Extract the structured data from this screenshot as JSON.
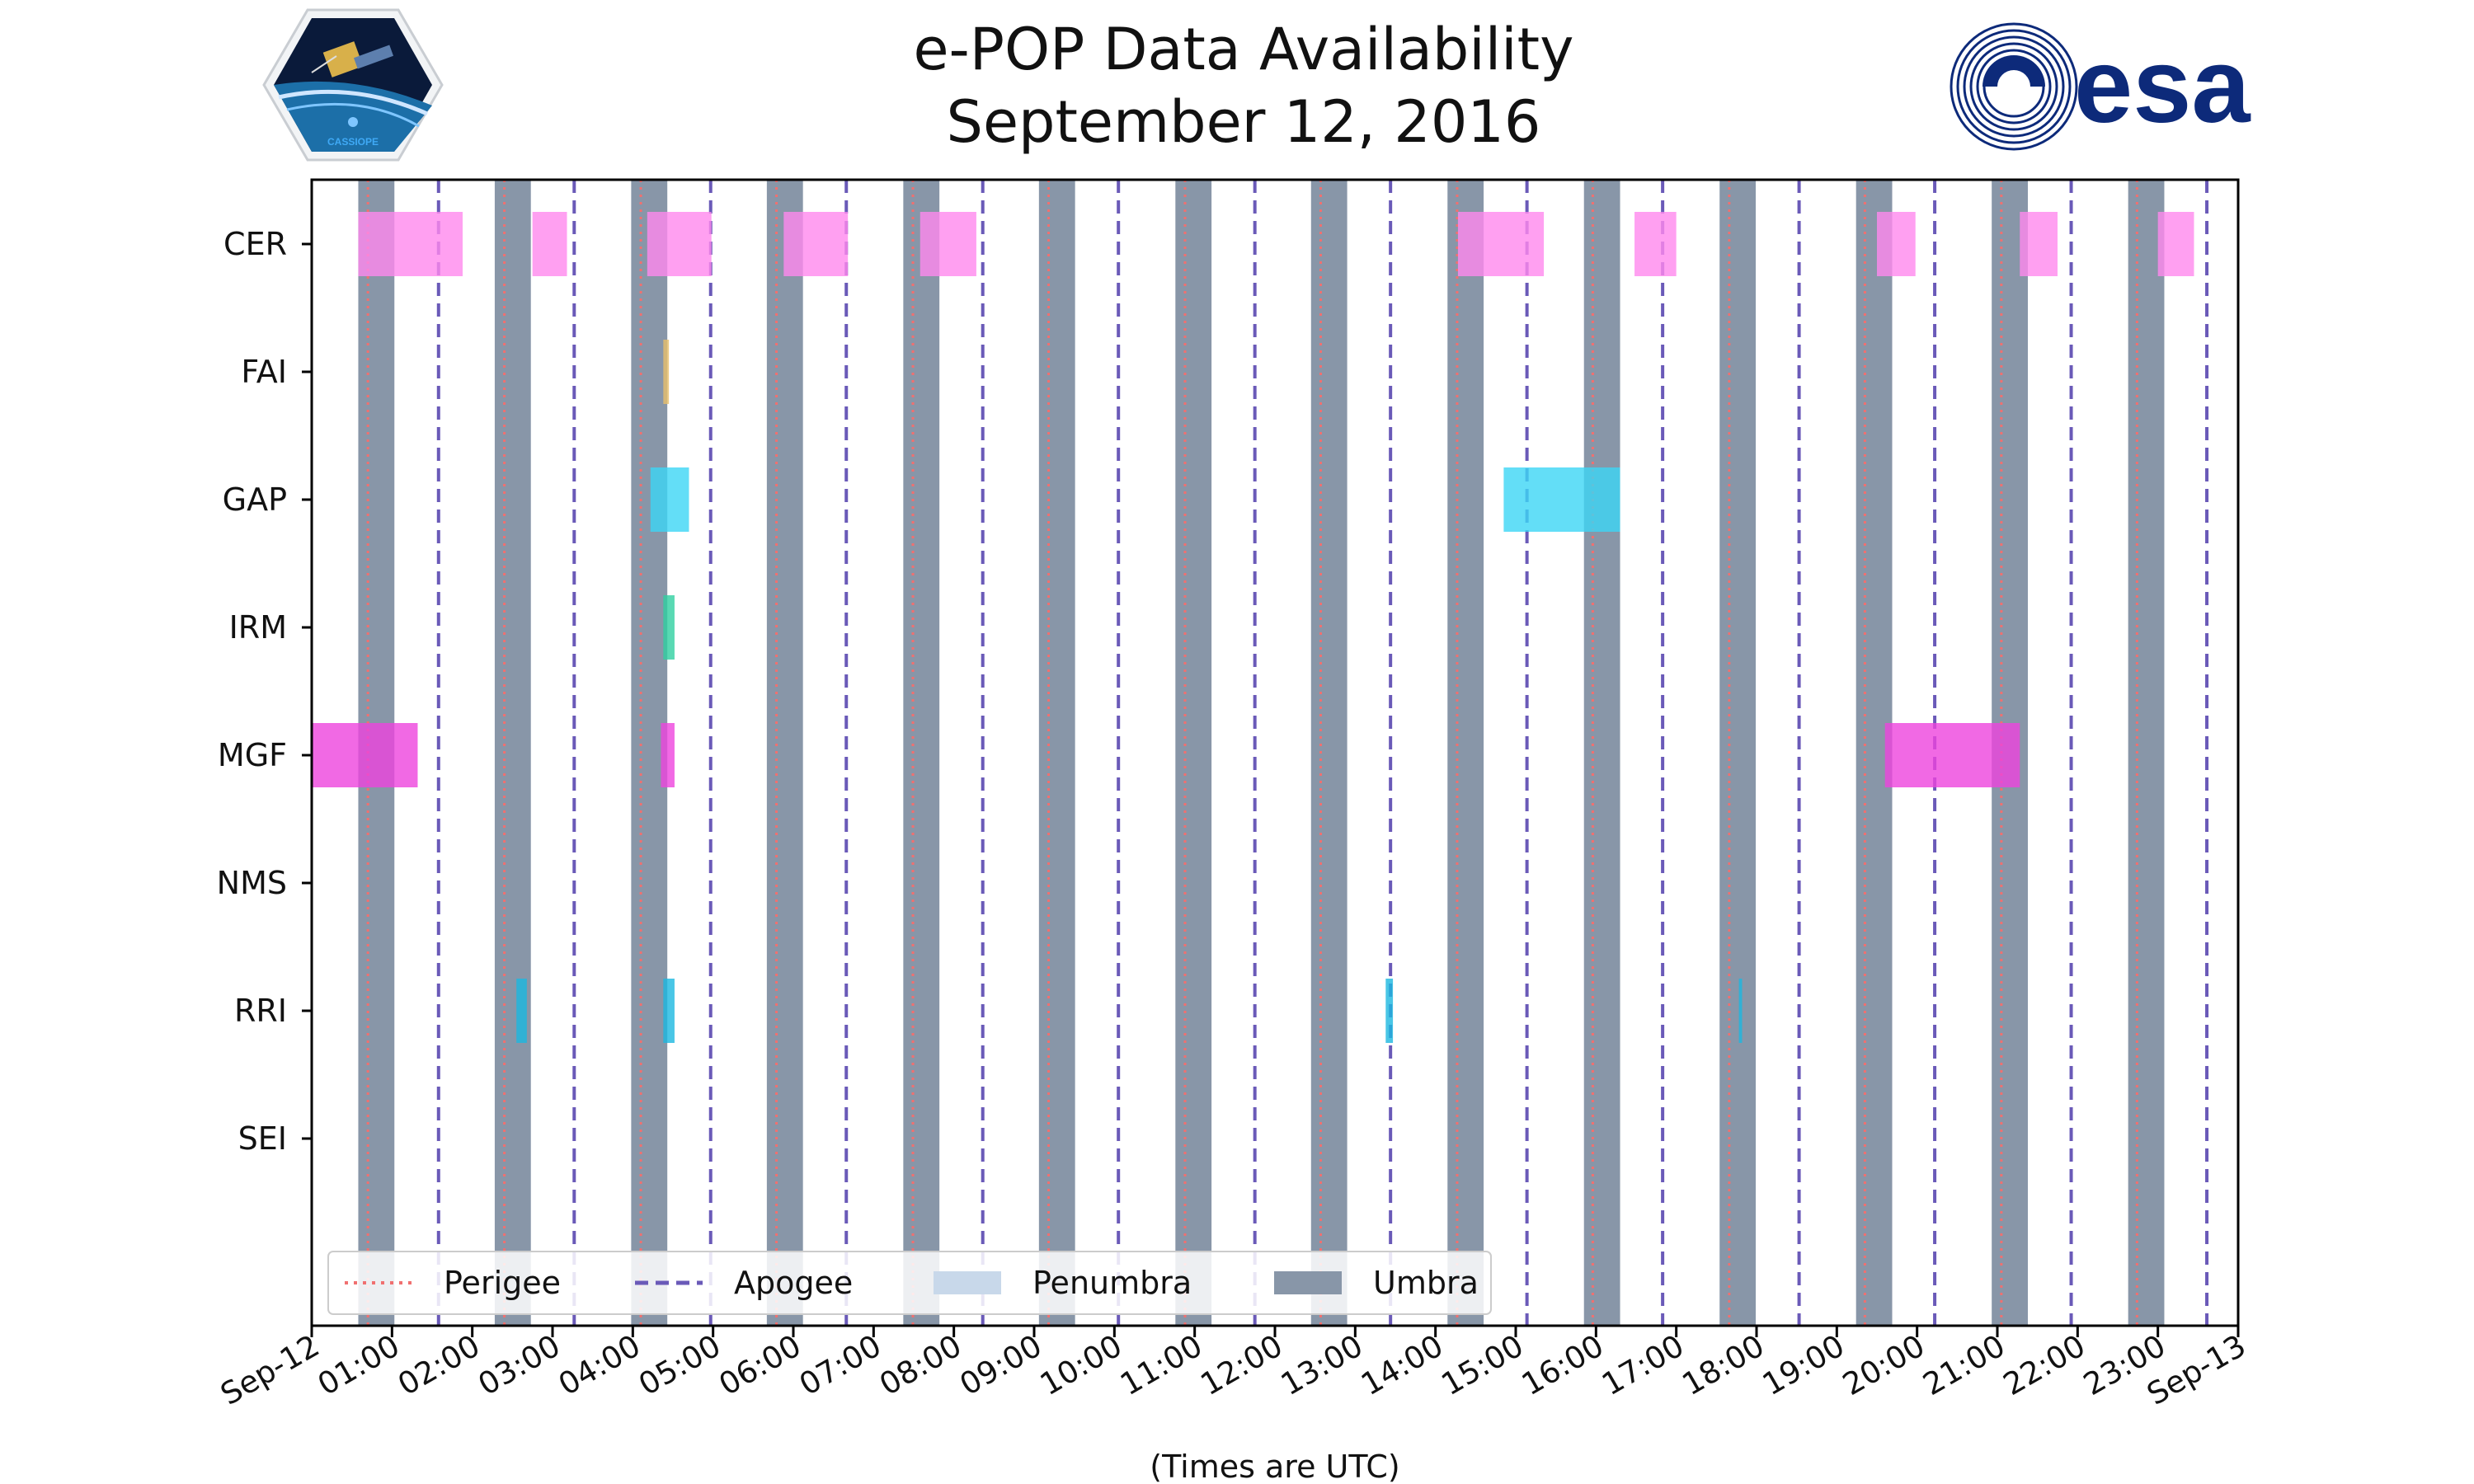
{
  "chart_data": {
    "type": "timeline",
    "title": "e-POP Data Availability",
    "subtitle": "September 12, 2016",
    "xlabel": "(Times are UTC)",
    "x_range_hours": [
      0,
      24
    ],
    "x_tick_labels": [
      "Sep-12",
      "01:00",
      "02:00",
      "03:00",
      "04:00",
      "05:00",
      "06:00",
      "07:00",
      "08:00",
      "09:00",
      "10:00",
      "11:00",
      "12:00",
      "13:00",
      "14:00",
      "15:00",
      "16:00",
      "17:00",
      "18:00",
      "19:00",
      "20:00",
      "21:00",
      "22:00",
      "23:00",
      "Sep-13"
    ],
    "instruments": [
      "CER",
      "FAI",
      "GAP",
      "IRM",
      "MGF",
      "NMS",
      "RRI",
      "SEI"
    ],
    "instrument_colors": {
      "CER": "#ff88ee",
      "FAI": "#e8bf6a",
      "GAP": "#3cd6f5",
      "IRM": "#2fd0a0",
      "MGF": "#ee44dd",
      "NMS": "#999999",
      "RRI": "#1cb8e0",
      "SEI": "#999999"
    },
    "coverage": {
      "CER": [
        [
          0.58,
          1.88
        ],
        [
          2.75,
          3.18
        ],
        [
          4.18,
          4.98
        ],
        [
          5.88,
          6.68
        ],
        [
          7.58,
          8.28
        ],
        [
          14.28,
          15.35
        ],
        [
          16.48,
          17.0
        ],
        [
          19.5,
          19.98
        ],
        [
          21.28,
          21.75
        ],
        [
          23.0,
          23.45
        ]
      ],
      "FAI": [
        [
          4.38,
          4.45
        ]
      ],
      "GAP": [
        [
          4.22,
          4.7
        ],
        [
          14.85,
          16.3
        ]
      ],
      "IRM": [
        [
          4.38,
          4.52
        ]
      ],
      "MGF": [
        [
          0.0,
          1.32
        ],
        [
          4.35,
          4.52
        ],
        [
          19.6,
          21.28
        ]
      ],
      "NMS": [],
      "RRI": [
        [
          2.55,
          2.68
        ],
        [
          4.38,
          4.52
        ],
        [
          13.38,
          13.47
        ],
        [
          17.78,
          17.82
        ]
      ],
      "SEI": []
    },
    "umbra_intervals": [
      [
        0.58,
        1.03
      ],
      [
        2.28,
        2.73
      ],
      [
        3.98,
        4.43
      ],
      [
        5.67,
        6.12
      ],
      [
        7.37,
        7.82
      ],
      [
        9.06,
        9.51
      ],
      [
        10.76,
        11.21
      ],
      [
        12.45,
        12.9
      ],
      [
        14.15,
        14.6
      ],
      [
        15.85,
        16.3
      ],
      [
        17.54,
        17.99
      ],
      [
        19.24,
        19.69
      ],
      [
        20.93,
        21.38
      ],
      [
        22.63,
        23.08
      ]
    ],
    "perigee_times": [
      0.7,
      2.4,
      4.1,
      5.79,
      7.49,
      9.18,
      10.88,
      12.57,
      14.27,
      15.96,
      17.66,
      19.35,
      21.05,
      22.74
    ],
    "apogee_times": [
      1.58,
      3.27,
      4.97,
      6.66,
      8.36,
      10.05,
      11.75,
      13.44,
      15.14,
      16.83,
      18.53,
      20.22,
      21.92,
      23.61
    ],
    "legend": {
      "position": "lower-left",
      "entries": [
        {
          "label": "Perigee",
          "style": "dotted",
          "color": "#f07070"
        },
        {
          "label": "Apogee",
          "style": "dashed",
          "color": "#6a5ab8"
        },
        {
          "label": "Penumbra",
          "style": "patch",
          "color": "#c8d8ea"
        },
        {
          "label": "Umbra",
          "style": "patch",
          "color": "#8896a8"
        }
      ]
    }
  },
  "logos": {
    "left": {
      "name": "CASSIOPE",
      "label": "CASSIOPE"
    },
    "right": {
      "name": "esa",
      "label": "esa"
    }
  },
  "colors": {
    "umbra": "#8896a8",
    "perigee": "#f07070",
    "apogee": "#6a5ab8",
    "esa_blue": "#0d2a7a"
  }
}
